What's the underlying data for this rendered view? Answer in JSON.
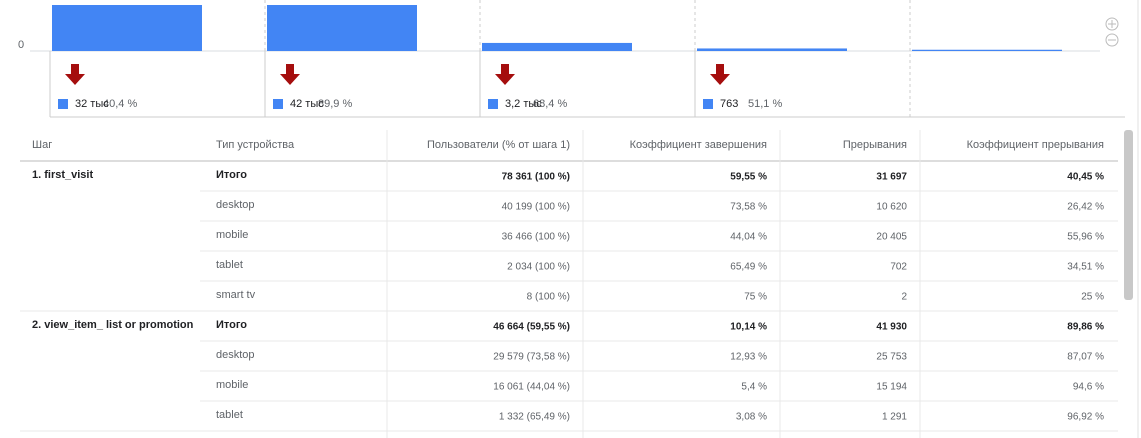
{
  "funnel": {
    "axis_zero": 0,
    "ylim": [
      0,
      27000
    ],
    "color": "#4285f4",
    "arrow_color": "#a50e0e",
    "steps": [
      {
        "value": 78361,
        "drop": "32 тыс",
        "drop_pct": "40,4 %"
      },
      {
        "value": 46664,
        "drop": "42 тыс",
        "drop_pct": "89,9 %"
      },
      {
        "value": 4734,
        "drop": "3,2 тыс",
        "drop_pct": "68,4 %"
      },
      {
        "value": 1494,
        "drop": "763",
        "drop_pct": "51,1 %"
      },
      {
        "value": 731
      }
    ]
  },
  "table": {
    "headers": [
      "Шаг",
      "Тип устройства",
      "Пользователи (% от шага 1)",
      "Коэффициент завершения",
      "Прерывания",
      "Коэффициент прерывания"
    ],
    "groups": [
      {
        "step": "1. first_visit",
        "rows": [
          [
            "Итого",
            "78 361 (100 %)",
            "59,55 %",
            "31 697",
            "40,45 %"
          ],
          [
            "desktop",
            "40 199 (100 %)",
            "73,58 %",
            "10 620",
            "26,42 %"
          ],
          [
            "mobile",
            "36 466 (100 %)",
            "44,04 %",
            "20 405",
            "55,96 %"
          ],
          [
            "tablet",
            "2 034 (100 %)",
            "65,49 %",
            "702",
            "34,51 %"
          ],
          [
            "smart tv",
            "8 (100 %)",
            "75 %",
            "2",
            "25 %"
          ]
        ]
      },
      {
        "step": "2. view_item_ list or promotion",
        "rows": [
          [
            "Итого",
            "46 664 (59,55 %)",
            "10,14 %",
            "41 930",
            "89,86 %"
          ],
          [
            "desktop",
            "29 579 (73,58 %)",
            "12,93 %",
            "25 753",
            "87,07 %"
          ],
          [
            "mobile",
            "16 061 (44,04 %)",
            "5,4 %",
            "15 194",
            "94,6 %"
          ],
          [
            "tablet",
            "1 332 (65,49 %)",
            "3,08 %",
            "1 291",
            "96,92 %"
          ]
        ]
      }
    ]
  }
}
